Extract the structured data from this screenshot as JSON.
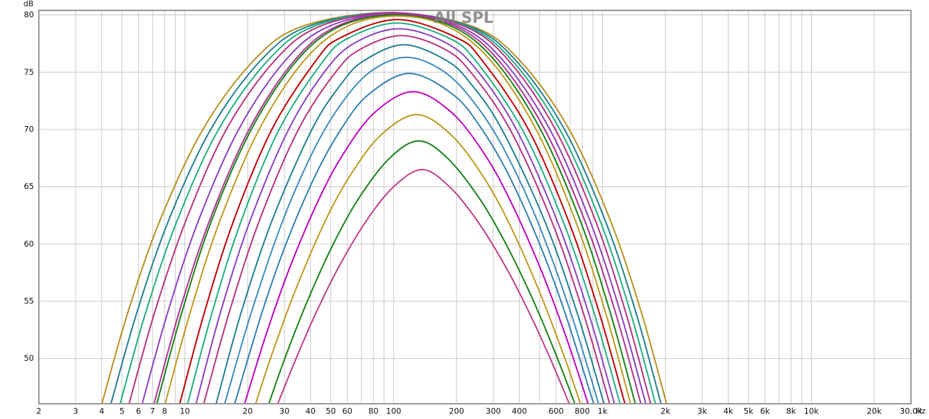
{
  "chart_data": {
    "type": "line",
    "title": "All SPL",
    "x_label": "Hz",
    "y_label": "dB",
    "log_x": true,
    "grid": true,
    "xlim": [
      2,
      30000
    ],
    "ylim": [
      46.05,
      80.4
    ],
    "xticks": [
      2,
      3,
      4,
      5,
      6,
      7,
      8,
      10,
      20,
      30,
      40,
      50,
      60,
      80,
      100,
      200,
      300,
      400,
      600,
      800,
      {
        "value": 1000,
        "label": "1k"
      },
      {
        "value": 2000,
        "label": "2k"
      },
      {
        "value": 3000,
        "label": "3k"
      },
      {
        "value": 4000,
        "label": "4k"
      },
      {
        "value": 5000,
        "label": "5k"
      },
      {
        "value": 6000,
        "label": "6k"
      },
      {
        "value": 8000,
        "label": "8k"
      },
      {
        "value": 10000,
        "label": "10k"
      },
      {
        "value": 20000,
        "label": "20k"
      },
      {
        "value": 30000,
        "label": "30.0k"
      }
    ],
    "x_minor_grid": [
      9,
      70,
      90,
      500,
      700,
      900,
      7000,
      9000
    ],
    "yticks": [
      50,
      55,
      60,
      65,
      70,
      75,
      80
    ],
    "series": [
      {
        "color": "#b8901e",
        "x": [
          4.0,
          5.33,
          7.58,
          12.2,
          21.3,
          36.4,
          94.8,
          239,
          403,
          693,
          1094,
          1537,
          2031
        ],
        "values": [
          46,
          54,
          62,
          70,
          76,
          79,
          80.2,
          79,
          76,
          70,
          62,
          54,
          46
        ]
      },
      {
        "color": "#1f7f8f",
        "x": [
          4.42,
          5.89,
          8.34,
          13.3,
          23.0,
          38.9,
          96.2,
          232,
          386,
          658,
          1033,
          1447,
          1910
        ],
        "values": [
          46,
          54,
          62,
          70,
          76,
          79,
          80.2,
          79,
          76,
          70,
          62,
          54,
          46
        ]
      },
      {
        "color": "#1fae7f",
        "x": [
          4.89,
          6.49,
          9.17,
          14.5,
          24.9,
          41.4,
          97.7,
          225,
          370,
          625,
          975,
          1363,
          1797
        ],
        "values": [
          46,
          54,
          62,
          70,
          76,
          79,
          80.2,
          79,
          76,
          70,
          62,
          54,
          46
        ]
      },
      {
        "color": "#b8307f",
        "x": [
          5.4,
          7.16,
          10.1,
          15.8,
          26.9,
          44.2,
          99.2,
          219,
          356,
          595,
          927,
          1293,
          1703
        ],
        "values": [
          46,
          54,
          62,
          70,
          76,
          79,
          80.2,
          79,
          76,
          70,
          62,
          54,
          46
        ]
      },
      {
        "color": "#8b3fbf",
        "x": [
          6.24,
          8.27,
          11.6,
          18.1,
          30.2,
          48.9,
          101,
          207,
          335,
          560,
          872,
          1220,
          1614
        ],
        "values": [
          46,
          54,
          62,
          70,
          76,
          79,
          80.15,
          79,
          76,
          70,
          62,
          54,
          46
        ]
      },
      {
        "color": "#b02f90",
        "x": [
          7.11,
          9.38,
          13.1,
          20.3,
          33.4,
          53.3,
          102,
          198,
          319,
          529,
          824,
          1155,
          1530
        ],
        "values": [
          46,
          54,
          62,
          70,
          76,
          79,
          80.1,
          79,
          76,
          70,
          62,
          54,
          46
        ]
      },
      {
        "color": "#148214",
        "x": [
          7.33,
          9.67,
          13.4,
          20.8,
          34.3,
          55.2,
          102,
          190,
          306,
          505,
          784,
          1090,
          1439
        ],
        "values": [
          46,
          54,
          62,
          70,
          76,
          79,
          80.0,
          79,
          76,
          70,
          62,
          54,
          46
        ]
      },
      {
        "color": "#c0981c",
        "x": [
          8.04,
          10.6,
          14.7,
          22.7,
          37.2,
          59.8,
          104,
          181,
          292,
          481,
          743,
          1035,
          1364
        ],
        "values": [
          46,
          54,
          62,
          70,
          76,
          79,
          79.9,
          79,
          76,
          70,
          62,
          54,
          46
        ]
      },
      {
        "color": "#c00000",
        "x": [
          9.44,
          12.4,
          17.1,
          26.1,
          42.4,
          55.5,
          104,
          201,
          266,
          442,
          688,
          965,
          1283
        ],
        "values": [
          46,
          54,
          62,
          70,
          76,
          78,
          79.6,
          78,
          76,
          70,
          62,
          54,
          46
        ]
      },
      {
        "color": "#1fae7f",
        "x": [
          10.3,
          13.5,
          18.6,
          28.3,
          46.1,
          61.0,
          104,
          183,
          247,
          413,
          647,
          911,
          1216
        ],
        "values": [
          46,
          54,
          62,
          70,
          76,
          78,
          79.3,
          78,
          76,
          70,
          62,
          54,
          46
        ]
      },
      {
        "color": "#8b3fbf",
        "x": [
          11.3,
          14.8,
          20.5,
          31.4,
          46.5,
          64.3,
          106,
          181,
          255,
          387,
          607,
          857,
          1143
        ],
        "values": [
          46,
          54,
          62,
          70,
          75,
          77.5,
          78.8,
          77.5,
          75,
          70,
          62,
          54,
          46
        ]
      },
      {
        "color": "#b8307f",
        "x": [
          12.3,
          16.3,
          22.7,
          35.0,
          52.7,
          69.1,
          109,
          176,
          234,
          361,
          571,
          809,
          1084
        ],
        "values": [
          46,
          54,
          62,
          70,
          75,
          77,
          78.2,
          77,
          75,
          70,
          62,
          54,
          46
        ]
      },
      {
        "color": "#1f7f8f",
        "x": [
          14.1,
          18.6,
          26.1,
          40.6,
          56.2,
          71.9,
          112,
          180,
          234,
          330,
          529,
          756,
          1019
        ],
        "values": [
          46,
          54,
          62,
          70,
          74,
          76,
          77.4,
          76,
          74,
          70,
          62,
          54,
          46
        ]
      },
      {
        "color": "#3a8cc0",
        "x": [
          15.5,
          20.8,
          29.4,
          40.9,
          54.9,
          76.8,
          115,
          176,
          251,
          344,
          488,
          705,
          959
        ],
        "values": [
          46,
          54,
          62,
          68,
          72,
          75,
          76.3,
          75,
          72,
          68,
          62,
          54,
          46
        ]
      },
      {
        "color": "#2f7fb0",
        "x": [
          17.3,
          23.4,
          30.5,
          42.2,
          55.9,
          75.2,
          119,
          194,
          265,
          356,
          500,
          661,
          909
        ],
        "values": [
          46,
          54,
          60,
          66,
          70,
          73,
          74.9,
          73,
          70,
          66,
          60,
          54,
          46
        ]
      },
      {
        "color": "#c000c0",
        "x": [
          19.3,
          24.4,
          31.9,
          44.1,
          58.0,
          81.3,
          124,
          189,
          269,
          357,
          501,
          666,
          855
        ],
        "values": [
          46,
          52,
          58,
          64,
          68,
          71.5,
          73.3,
          71.5,
          68,
          64,
          58,
          52,
          46
        ]
      },
      {
        "color": "#c0981c",
        "x": [
          21.8,
          25.7,
          33.9,
          47.0,
          62.0,
          86.7,
          129,
          189,
          266,
          353,
          495,
          661,
          786
        ],
        "values": [
          46,
          50,
          56,
          62,
          66,
          69.5,
          71.3,
          69.5,
          66,
          62,
          56,
          50,
          46
        ]
      },
      {
        "color": "#148214",
        "x": [
          25.2,
          30.1,
          38.6,
          51.4,
          68.1,
          95.7,
          132,
          181,
          257,
          345,
          468,
          609,
          739
        ],
        "values": [
          46,
          50,
          55,
          60,
          64,
          67.5,
          69.0,
          67.5,
          64,
          60,
          55,
          50,
          46
        ]
      },
      {
        "color": "#c03c8c",
        "x": [
          27.8,
          34.1,
          42.5,
          54.6,
          73.8,
          100,
          137,
          185,
          252,
          344,
          446,
          562,
          695
        ],
        "values": [
          46,
          50,
          54,
          58,
          62,
          65,
          66.5,
          65,
          62,
          58,
          54,
          50,
          46
        ]
      }
    ]
  }
}
